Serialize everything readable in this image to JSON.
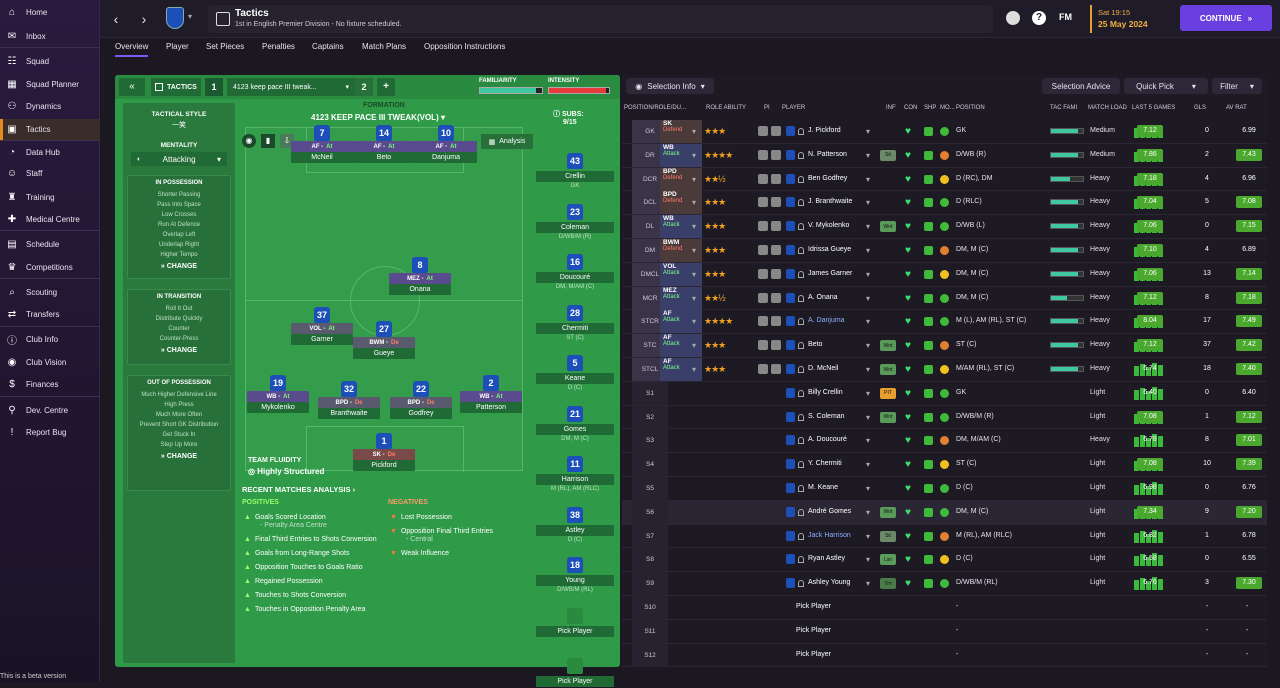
{
  "sidebar": {
    "items": [
      {
        "label": "Home",
        "icon": "home-icon",
        "glyph": "⌂"
      },
      {
        "label": "Inbox",
        "icon": "inbox-icon",
        "glyph": "✉"
      },
      {
        "label": "Squad",
        "icon": "squad-icon",
        "glyph": "☷"
      },
      {
        "label": "Squad Planner",
        "icon": "planner-icon",
        "glyph": "▦"
      },
      {
        "label": "Dynamics",
        "icon": "dynamics-icon",
        "glyph": "⚇"
      },
      {
        "label": "Tactics",
        "icon": "tactics-icon",
        "glyph": "▣"
      },
      {
        "label": "Data Hub",
        "icon": "datahub-icon",
        "glyph": "◔"
      },
      {
        "label": "Staff",
        "icon": "staff-icon",
        "glyph": "☺"
      },
      {
        "label": "Training",
        "icon": "training-icon",
        "glyph": "♜"
      },
      {
        "label": "Medical Centre",
        "icon": "medical-icon",
        "glyph": "✚"
      },
      {
        "label": "Schedule",
        "icon": "schedule-icon",
        "glyph": "▤"
      },
      {
        "label": "Competitions",
        "icon": "trophy-icon",
        "glyph": "♛"
      },
      {
        "label": "Scouting",
        "icon": "scouting-icon",
        "glyph": "⌕"
      },
      {
        "label": "Transfers",
        "icon": "transfers-icon",
        "glyph": "⇄"
      },
      {
        "label": "Club Info",
        "icon": "club-info-icon",
        "glyph": "ⓘ"
      },
      {
        "label": "Club Vision",
        "icon": "vision-icon",
        "glyph": "◉"
      },
      {
        "label": "Finances",
        "icon": "finances-icon",
        "glyph": "$"
      },
      {
        "label": "Dev. Centre",
        "icon": "dev-centre-icon",
        "glyph": "⚲"
      },
      {
        "label": "Report Bug",
        "icon": "bug-icon",
        "glyph": "!"
      }
    ],
    "beta": "This is a beta version"
  },
  "topbar": {
    "title": "Tactics",
    "subtitle": "1st in English Premier Division - No fixture scheduled.",
    "fm": "FM",
    "time": "Sat 19:15",
    "date": "25 May 2024",
    "continue": "CONTINUE"
  },
  "tabs": [
    "Overview",
    "Player",
    "Set Pieces",
    "Penalties",
    "Captains",
    "Match Plans",
    "Opposition Instructions"
  ],
  "tactic": {
    "label": "TACTICS",
    "slot1": "1",
    "name": "4123 keep pace III tweak...",
    "slot2": "2",
    "add": "+",
    "familiarity": "FAMILIARITY",
    "intensity": "INTENSITY",
    "formation_label": "FORMATION",
    "formation": "4123 KEEP PACE III TWEAK(VOL)",
    "subs_label": "SUBS:",
    "subs_count": "9/15",
    "analysis_btn": "Analysis",
    "style_title": "TACTICAL STYLE",
    "style_value": "一笑",
    "mentality_label": "MENTALITY",
    "mentality": "Attacking",
    "in_possession": {
      "title": "IN POSSESSION",
      "items": [
        "Shorter Passing",
        "Pass Into Space",
        "Low Crosses",
        "Run At Defence",
        "Overlap Left",
        "Underlap Right",
        "Higher Tempo"
      ]
    },
    "in_transition": {
      "title": "IN TRANSITION",
      "items": [
        "Roll It Out",
        "Distribute Quickly",
        "Counter",
        "Counter-Press"
      ]
    },
    "out_possession": {
      "title": "OUT OF POSSESSION",
      "items": [
        "Much Higher Defensive Line",
        "High Press",
        "Much More Often",
        "Prevent Short GK Distribution",
        "Get Stuck In",
        "Step Up More"
      ]
    },
    "change": "CHANGE",
    "fluidity_label": "TEAM FLUIDITY",
    "fluidity": "Highly Structured"
  },
  "pitch_players": [
    {
      "num": "7",
      "role": "AF",
      "duty": "At",
      "name": "McNeil",
      "duty_type": "d"
    },
    {
      "num": "14",
      "role": "AF",
      "duty": "At",
      "name": "Beto",
      "duty_type": "d"
    },
    {
      "num": "10",
      "role": "AF",
      "duty": "At",
      "name": "Danjuma",
      "duty_type": "d"
    },
    {
      "num": "8",
      "role": "MEZ",
      "duty": "At",
      "name": "Onana",
      "duty_type": "d"
    },
    {
      "num": "37",
      "role": "VOL",
      "duty": "At",
      "name": "Garner",
      "duty_type": "d"
    },
    {
      "num": "27",
      "role": "BWM",
      "duty": "De",
      "name": "Gueye",
      "duty_type": "r"
    },
    {
      "num": "19",
      "role": "WB",
      "duty": "At",
      "name": "Mykolenko",
      "duty_type": "d"
    },
    {
      "num": "32",
      "role": "BPD",
      "duty": "De",
      "name": "Branthwaite",
      "duty_type": "r"
    },
    {
      "num": "22",
      "role": "BPD",
      "duty": "De",
      "name": "Godfrey",
      "duty_type": "r"
    },
    {
      "num": "2",
      "role": "WB",
      "duty": "At",
      "name": "Patterson",
      "duty_type": "d"
    },
    {
      "num": "1",
      "role": "SK",
      "duty": "De",
      "name": "Pickford",
      "duty_type": "r"
    }
  ],
  "subs": [
    {
      "num": "43",
      "name": "Crellin",
      "pos": "GK"
    },
    {
      "num": "23",
      "name": "Coleman",
      "pos": "D/WB/M (R)"
    },
    {
      "num": "16",
      "name": "Doucouré",
      "pos": "DM, M/AM (C)"
    },
    {
      "num": "28",
      "name": "Chermiti",
      "pos": "ST (C)"
    },
    {
      "num": "5",
      "name": "Keane",
      "pos": "D (C)"
    },
    {
      "num": "21",
      "name": "Gomes",
      "pos": "DM, M (C)"
    },
    {
      "num": "11",
      "name": "Harrison",
      "pos": "M (RL), AM (RLC)"
    },
    {
      "num": "38",
      "name": "Astley",
      "pos": "D (C)"
    },
    {
      "num": "18",
      "name": "Young",
      "pos": "D/WB/M (RL)"
    },
    {
      "num": "",
      "name": "Pick Player",
      "pos": ""
    },
    {
      "num": "",
      "name": "Pick Player",
      "pos": ""
    }
  ],
  "analysis": {
    "title": "RECENT MATCHES ANALYSIS",
    "pos_title": "POSITIVES",
    "neg_title": "NEGATIVES",
    "positives": [
      "Goals Scored Location",
      "- Penalty Area Centre",
      "Final Third Entries to Shots Conversion",
      "Goals from Long-Range Shots",
      "Opposition Touches to Goals Ratio",
      "Regained Possession",
      "Touches to Shots Conversion",
      "Touches in Opposition Penalty Area"
    ],
    "negatives": [
      "Lost Possession",
      "Opposition Final Third Entries",
      "- Central",
      "Weak Influence"
    ]
  },
  "squad_toolbar": {
    "selection_info": "Selection Info",
    "selection_advice": "Selection Advice",
    "quick_pick": "Quick Pick",
    "filter": "Filter"
  },
  "columns": [
    "POSITION/ROLE/DU...",
    "ROLE ABILITY",
    "PI",
    "PLAYER",
    "INF",
    "CON",
    "SHP",
    "MO...",
    "POSITION",
    "TAC FAMI",
    "MATCH LOAD",
    "LAST 5 GAMES",
    "GLS",
    "AV RAT"
  ],
  "rows": [
    {
      "slot": "GK",
      "role": "SK",
      "duty": "Defend",
      "dt": "d",
      "stars": "★★★",
      "player": "J. Pickford",
      "inf": "",
      "position": "GK",
      "fam": 0.85,
      "load": "Medium",
      "last5": "7.12",
      "gls": "0",
      "avr": "6.99",
      "ag": false
    },
    {
      "slot": "DR",
      "role": "WB",
      "duty": "Attack",
      "dt": "a",
      "stars": "★★★★",
      "player": "N. Patterson",
      "inf": "Sit",
      "position": "D/WB (R)",
      "fam": 0.85,
      "load": "Medium",
      "last5": "7.86",
      "gls": "2",
      "avr": "7.43",
      "ag": true
    },
    {
      "slot": "DCR",
      "role": "BPD",
      "duty": "Defend",
      "dt": "d",
      "stars": "★★½",
      "player": "Ben Godfrey",
      "inf": "",
      "position": "D (RC), DM",
      "fam": 0.6,
      "load": "Heavy",
      "last5": "7.18",
      "gls": "4",
      "avr": "6.96",
      "ag": false
    },
    {
      "slot": "DCL",
      "role": "BPD",
      "duty": "Defend",
      "dt": "d",
      "stars": "★★★",
      "player": "J. Branthwaite",
      "inf": "",
      "position": "D (RLC)",
      "fam": 0.85,
      "load": "Heavy",
      "last5": "7.04",
      "gls": "5",
      "avr": "7.08",
      "ag": true
    },
    {
      "slot": "DL",
      "role": "WB",
      "duty": "Attack",
      "dt": "a",
      "stars": "★★★",
      "player": "V. Mykolenko",
      "inf": "Wnt",
      "position": "D/WB (L)",
      "fam": 0.85,
      "load": "Heavy",
      "last5": "7.06",
      "gls": "0",
      "avr": "7.15",
      "ag": true
    },
    {
      "slot": "DM",
      "role": "BWM",
      "duty": "Defend",
      "dt": "d",
      "stars": "★★★",
      "player": "Idrissa Gueye",
      "inf": "",
      "position": "DM, M (C)",
      "fam": 0.85,
      "load": "Heavy",
      "last5": "7.10",
      "gls": "4",
      "avr": "6.89",
      "ag": false
    },
    {
      "slot": "DMCL",
      "role": "VOL",
      "duty": "Attack",
      "dt": "a",
      "stars": "★★★",
      "player": "James Garner",
      "inf": "",
      "position": "DM, M (C)",
      "fam": 0.85,
      "load": "Heavy",
      "last5": "7.06",
      "gls": "13",
      "avr": "7.14",
      "ag": true
    },
    {
      "slot": "MCR",
      "role": "MEZ",
      "duty": "Attack",
      "dt": "a",
      "stars": "★★½",
      "player": "A. Onana",
      "inf": "",
      "position": "DM, M (C)",
      "fam": 0.5,
      "load": "Heavy",
      "last5": "7.12",
      "gls": "8",
      "avr": "7.18",
      "ag": true
    },
    {
      "slot": "STCR",
      "role": "AF",
      "duty": "Attack",
      "dt": "a",
      "stars": "★★★★",
      "player": "A. Danjuma",
      "inf": "",
      "position": "M (L), AM (RL), ST (C)",
      "fam": 0.85,
      "load": "Heavy",
      "last5": "8.04",
      "gls": "17",
      "avr": "7.49",
      "ag": true
    },
    {
      "slot": "STC",
      "role": "AF",
      "duty": "Attack",
      "dt": "a",
      "stars": "★★★",
      "player": "Beto",
      "inf": "Wnt",
      "position": "ST (C)",
      "fam": 0.85,
      "load": "Heavy",
      "last5": "7.12",
      "gls": "37",
      "avr": "7.42",
      "ag": true
    },
    {
      "slot": "STCL",
      "role": "AF",
      "duty": "Attack",
      "dt": "a",
      "stars": "★★★",
      "player": "D. McNeil",
      "inf": "Wnt",
      "position": "M/AM (RL), ST (C)",
      "fam": 0.85,
      "load": "Heavy",
      "last5": "6.74",
      "gls": "18",
      "avr": "7.40",
      "ag": true
    },
    {
      "slot": "S1",
      "role": "",
      "duty": "",
      "dt": "",
      "stars": "",
      "player": "Billy Crellin",
      "inf": "PIT",
      "position": "GK",
      "fam": 0,
      "load": "Light",
      "last5": "6.40",
      "gls": "0",
      "avr": "6.40",
      "ag": false
    },
    {
      "slot": "S2",
      "role": "",
      "duty": "",
      "dt": "",
      "stars": "",
      "player": "S. Coleman",
      "inf": "Wnt",
      "position": "D/WB/M (R)",
      "fam": 0,
      "load": "Light",
      "last5": "7.08",
      "gls": "1",
      "avr": "7.12",
      "ag": true
    },
    {
      "slot": "S3",
      "role": "",
      "duty": "",
      "dt": "",
      "stars": "",
      "player": "A. Doucouré",
      "inf": "",
      "position": "DM, M/AM (C)",
      "fam": 0,
      "load": "Heavy",
      "last5": "6.78",
      "gls": "8",
      "avr": "7.01",
      "ag": true
    },
    {
      "slot": "S4",
      "role": "",
      "duty": "",
      "dt": "",
      "stars": "",
      "player": "Y. Chermiti",
      "inf": "",
      "position": "ST (C)",
      "fam": 0,
      "load": "Light",
      "last5": "7.08",
      "gls": "10",
      "avr": "7.39",
      "ag": true
    },
    {
      "slot": "S5",
      "role": "",
      "duty": "",
      "dt": "",
      "stars": "",
      "player": "M. Keane",
      "inf": "",
      "position": "D (C)",
      "fam": 0,
      "load": "Light",
      "last5": "6.98",
      "gls": "0",
      "avr": "6.76",
      "ag": false
    },
    {
      "slot": "S6",
      "role": "",
      "duty": "",
      "dt": "",
      "stars": "",
      "player": "André Gomes",
      "inf": "Wnt",
      "position": "DM, M (C)",
      "fam": 0,
      "load": "Light",
      "last5": "7.34",
      "gls": "9",
      "avr": "7.20",
      "ag": true
    },
    {
      "slot": "S7",
      "role": "",
      "duty": "",
      "dt": "",
      "stars": "",
      "player": "Jack Harrison",
      "inf": "Sit",
      "position": "M (RL), AM (RLC)",
      "fam": 0,
      "load": "Light",
      "last5": "6.82",
      "gls": "1",
      "avr": "6.78",
      "ag": false
    },
    {
      "slot": "S8",
      "role": "",
      "duty": "",
      "dt": "",
      "stars": "",
      "player": "Ryan Astley",
      "inf": "Lsn",
      "position": "D (C)",
      "fam": 0,
      "load": "Light",
      "last5": "6.58",
      "gls": "0",
      "avr": "6.55",
      "ag": false
    },
    {
      "slot": "S9",
      "role": "",
      "duty": "",
      "dt": "",
      "stars": "",
      "player": "Ashley Young",
      "inf": "Trn",
      "position": "D/WB/M (RL)",
      "fam": 0,
      "load": "Light",
      "last5": "6.76",
      "gls": "3",
      "avr": "7.30",
      "ag": true
    },
    {
      "slot": "S10",
      "role": "",
      "duty": "",
      "dt": "",
      "stars": "",
      "player": "Pick Player",
      "inf": "",
      "position": "-",
      "fam": 0,
      "load": "",
      "last5": "",
      "gls": "-",
      "avr": "-",
      "ag": false
    },
    {
      "slot": "S11",
      "role": "",
      "duty": "",
      "dt": "",
      "stars": "",
      "player": "Pick Player",
      "inf": "",
      "position": "-",
      "fam": 0,
      "load": "",
      "last5": "",
      "gls": "-",
      "avr": "-",
      "ag": false
    },
    {
      "slot": "S12",
      "role": "",
      "duty": "",
      "dt": "",
      "stars": "",
      "player": "Pick Player",
      "inf": "",
      "position": "-",
      "fam": 0,
      "load": "",
      "last5": "",
      "gls": "-",
      "avr": "-",
      "ag": false
    }
  ]
}
